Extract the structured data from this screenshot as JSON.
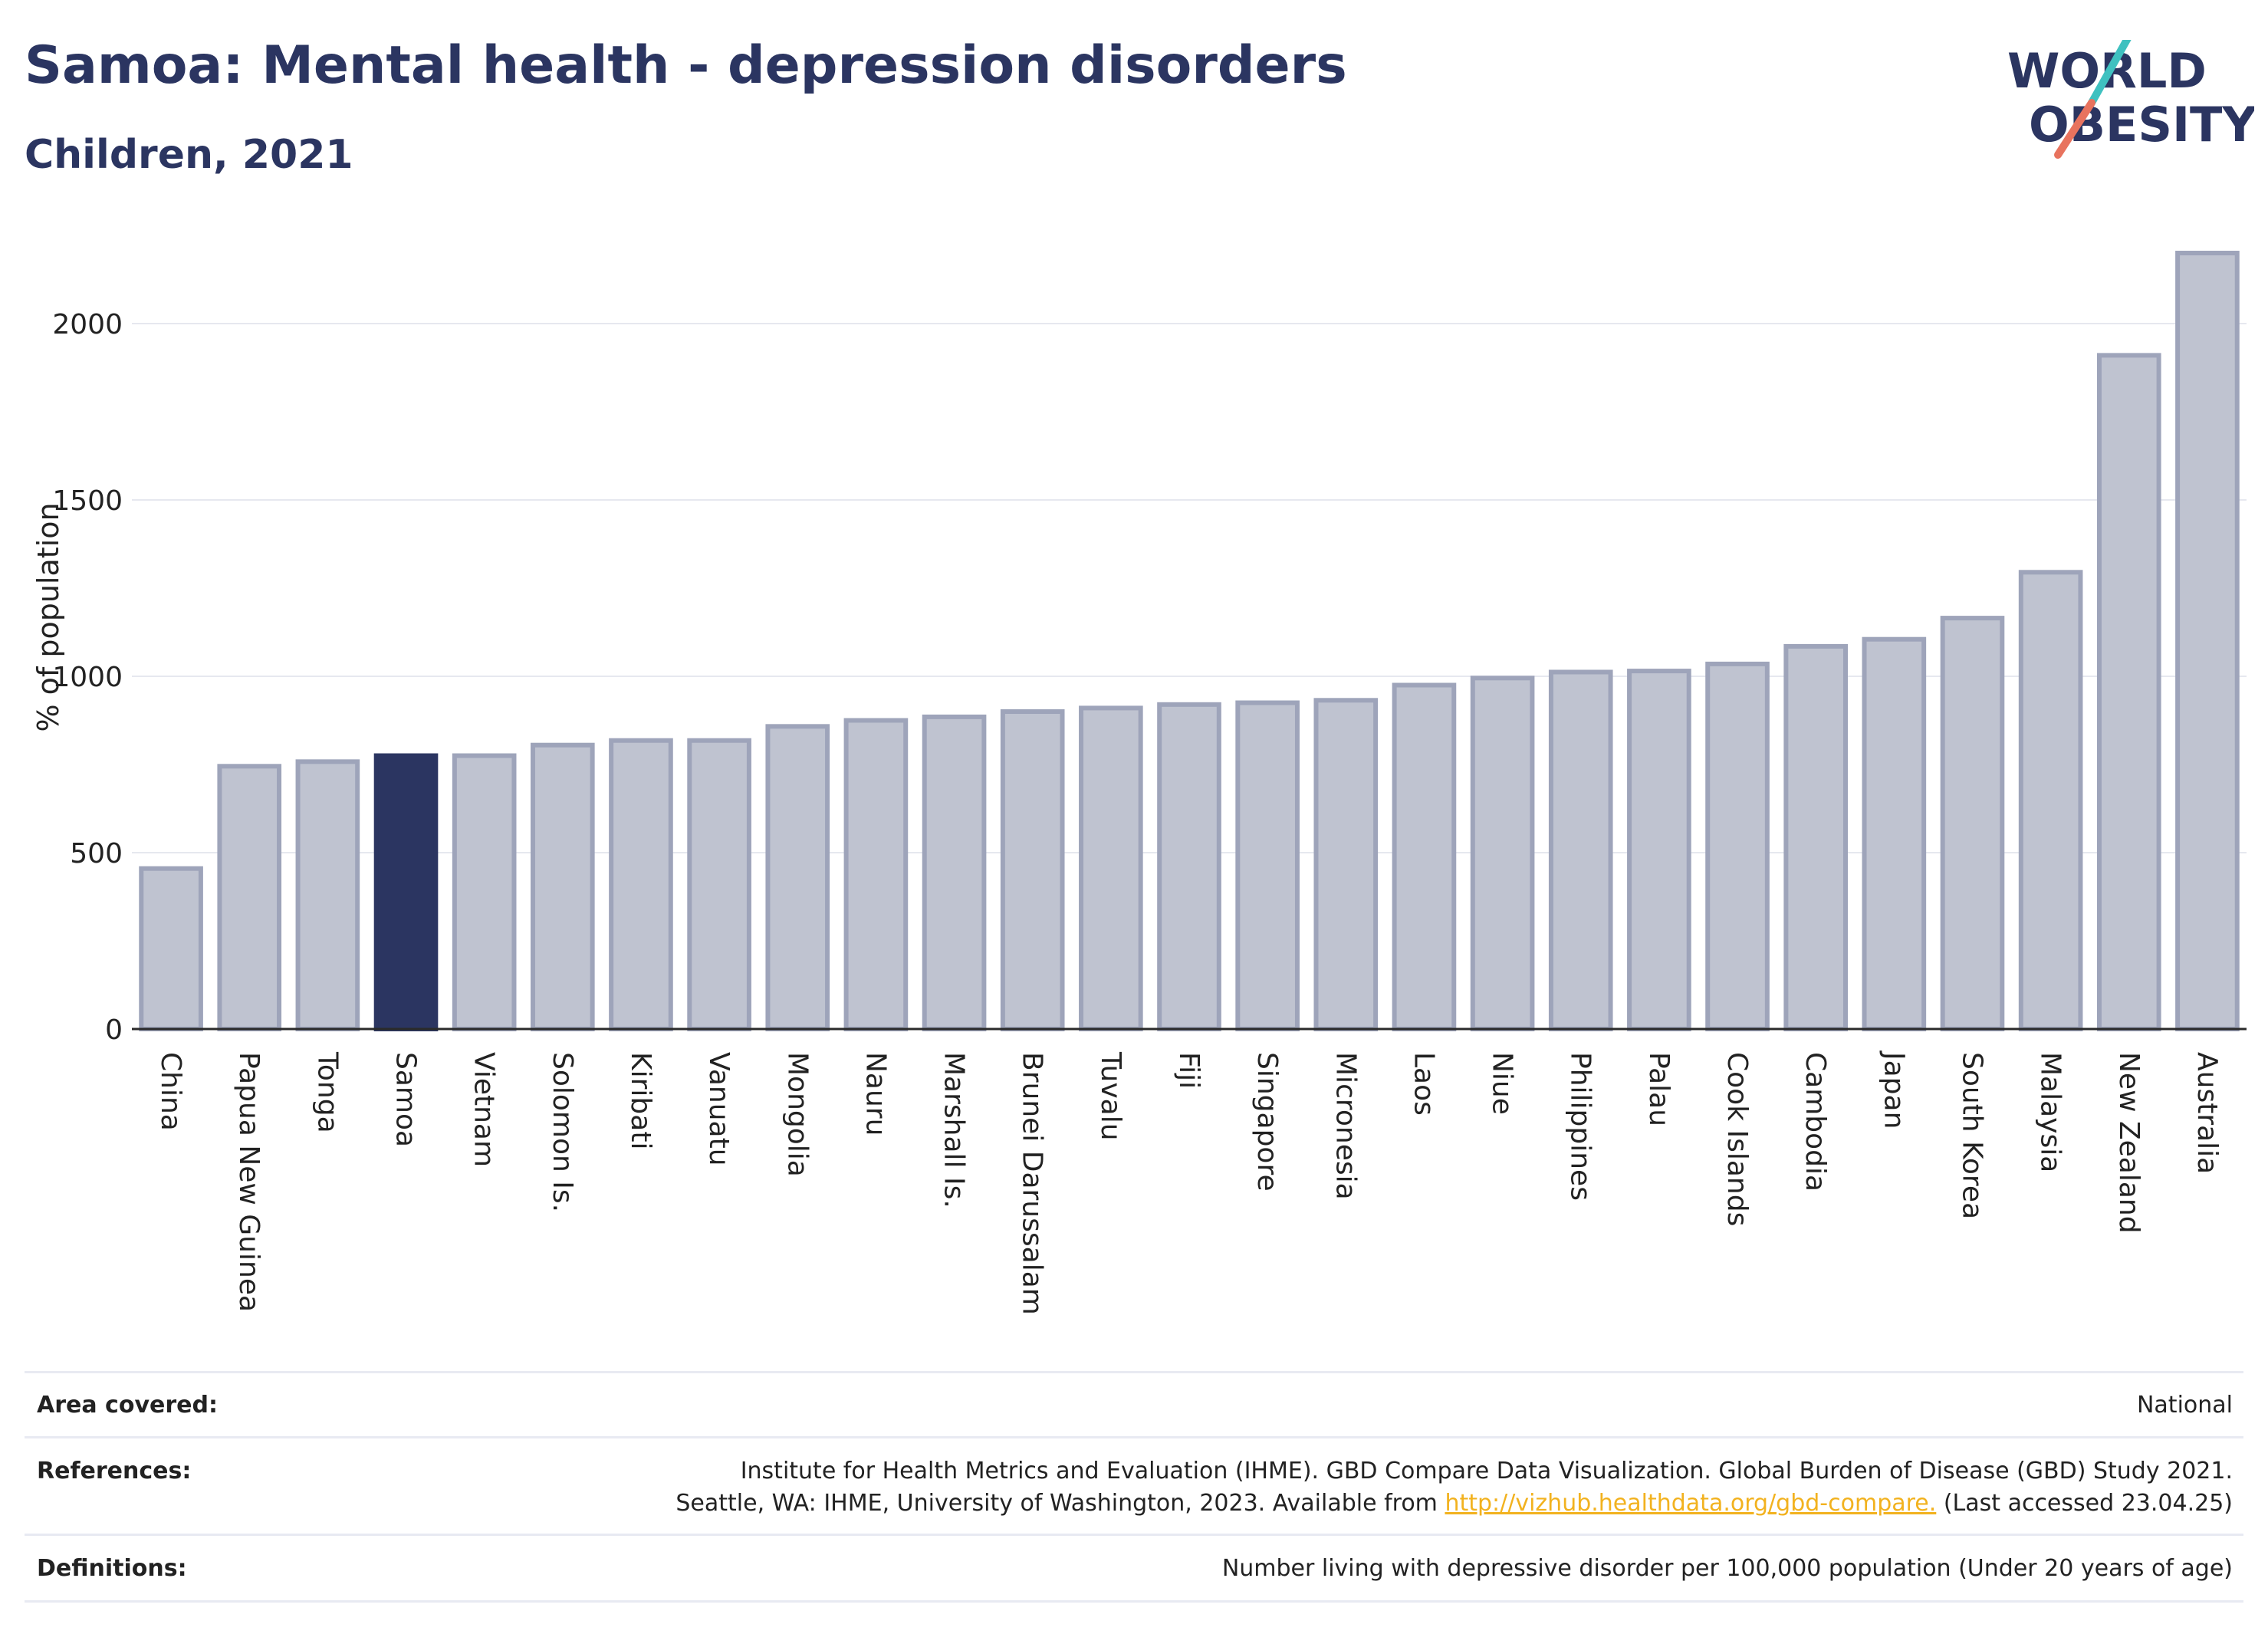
{
  "header": {
    "title": "Samoa: Mental health - depression disorders",
    "subtitle": "Children, 2021"
  },
  "logo": {
    "line1": "WORLD",
    "line2": "OBESITY",
    "accent_teal": "#3fc1c0",
    "accent_coral": "#e8735e"
  },
  "chart_data": {
    "type": "bar",
    "ylabel": "% of population",
    "yticks": [
      0,
      500,
      1000,
      1500,
      2000
    ],
    "ylim": [
      0,
      2250
    ],
    "grid": true,
    "highlight": "Samoa",
    "colors": {
      "bar": "#bfc3d0",
      "bar_edge": "#9ea4ba",
      "highlight": "#2b3561"
    },
    "categories": [
      "China",
      "Papua New Guinea",
      "Tonga",
      "Samoa",
      "Vietnam",
      "Solomon Is.",
      "Kiribati",
      "Vanuatu",
      "Mongolia",
      "Nauru",
      "Marshall Is.",
      "Brunei Darussalam",
      "Tuvalu",
      "Fiji",
      "Singapore",
      "Micronesia",
      "Laos",
      "Niue",
      "Philippines",
      "Palau",
      "Cook Islands",
      "Cambodia",
      "Japan",
      "South Korea",
      "Malaysia",
      "New Zealand",
      "Australia"
    ],
    "values": [
      455,
      745,
      758,
      775,
      775,
      805,
      818,
      818,
      858,
      875,
      885,
      900,
      910,
      920,
      925,
      932,
      975,
      995,
      1012,
      1015,
      1035,
      1085,
      1105,
      1165,
      1295,
      1910,
      2200
    ]
  },
  "footer": {
    "area_label": "Area covered:",
    "area_value": "National",
    "references_label": "References:",
    "references_line1": "Institute for Health Metrics and Evaluation (IHME). GBD Compare Data Visualization. Global Burden of Disease (GBD) Study 2021.",
    "references_line2_pre": "Seattle, WA: IHME, University of Washington, 2023. Available from ",
    "references_link": "http://vizhub.healthdata.org/gbd-compare.",
    "references_line2_post": " (Last accessed 23.04.25)",
    "definitions_label": "Definitions:",
    "definitions_value": "Number living with depressive disorder per 100,000 population (Under 20 years of age)"
  }
}
